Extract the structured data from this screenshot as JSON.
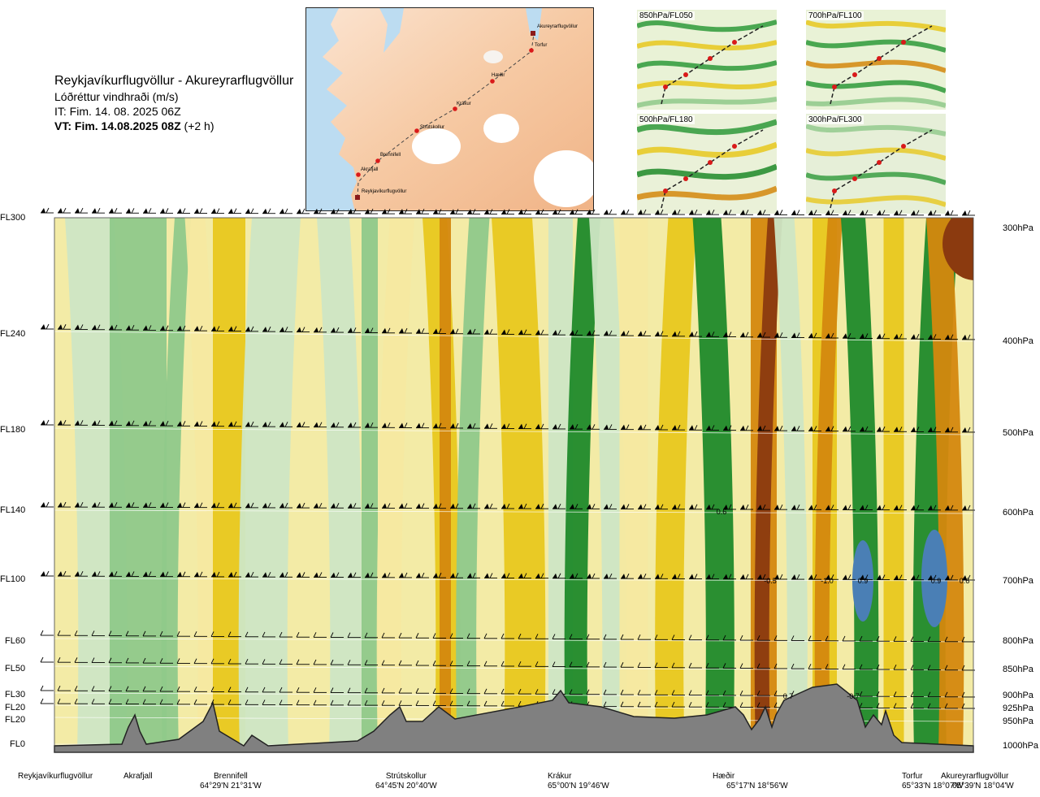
{
  "header": {
    "route": "Reykjavíkurflugvöllur - Akureyrarflugvöllur",
    "parameter": "Lóðréttur vindhraði (m/s)",
    "issue_time": "IT: Fim. 14. 08. 2025 06Z",
    "valid_time": "VT: Fim. 14.08.2025 08Z",
    "lead": "(+2 h)"
  },
  "route_map": {
    "points": [
      {
        "name": "Akureyrarflugvöllur"
      },
      {
        "name": "Torfur"
      },
      {
        "name": "Hæðir"
      },
      {
        "name": "Krákur"
      },
      {
        "name": "Strútskollur"
      },
      {
        "name": "Brennifell"
      },
      {
        "name": "Akrafjall"
      },
      {
        "name": "Reykjavíkurflugvöllur"
      }
    ]
  },
  "thumbnails": [
    {
      "label": "850hPa/FL050"
    },
    {
      "label": "700hPa/FL100"
    },
    {
      "label": "500hPa/FL180"
    },
    {
      "label": "300hPa/FL300"
    }
  ],
  "colors": {
    "sink_strong": "#8b3a0f",
    "sink_moderate": "#d4880e",
    "sink_weak": "#e8c81e",
    "sink_very_weak": "#f5e9a0",
    "rise_weak": "#cde6c4",
    "rise_moderate": "#8fc98a",
    "rise_strong": "#1f8a2a",
    "rise_very_strong": "#4a7fb5",
    "terrain": "#808080"
  },
  "chart_data": {
    "type": "heatmap",
    "title": "Lóðréttur vindhraði (m/s)",
    "y_levels_fl": [
      "FL300",
      "FL240",
      "FL180",
      "FL140",
      "FL100",
      "FL60",
      "FL50",
      "FL30",
      "FL20",
      "FL20",
      "FL0"
    ],
    "y_levels_hpa": [
      "300hPa",
      "400hPa",
      "500hPa",
      "600hPa",
      "700hPa",
      "800hPa",
      "850hPa",
      "900hPa",
      "925hPa",
      "950hPa",
      "1000hPa"
    ],
    "x_waypoints": [
      {
        "name": "Reykjavíkurflugvöllur",
        "coord": ""
      },
      {
        "name": "Akrafjall",
        "coord": ""
      },
      {
        "name": "Brennifell",
        "coord": "64°29'N 21°31'W"
      },
      {
        "name": "Strútskollur",
        "coord": "64°45'N 20°40'W"
      },
      {
        "name": "Krákur",
        "coord": "65°00'N 19°46'W"
      },
      {
        "name": "Hæðir",
        "coord": "65°17'N 18°56'W"
      },
      {
        "name": "Torfur",
        "coord": "65°33'N 18°07'W"
      },
      {
        "name": "Akureyrarflugvöllur",
        "coord": "65°39'N 18°04'W"
      }
    ],
    "value_labels": [
      {
        "level": "FL140",
        "text": "0.6"
      },
      {
        "level": "FL100",
        "text": "-0.5"
      },
      {
        "level": "FL100",
        "text": "-1.0"
      },
      {
        "level": "FL100",
        "text": "0.9"
      },
      {
        "level": "FL100",
        "text": "0.9"
      },
      {
        "level": "FL100",
        "text": "0.6"
      },
      {
        "level": "FL30",
        "text": "0.7"
      },
      {
        "level": "FL30",
        "text": "-0.7"
      }
    ],
    "legend": "none"
  }
}
